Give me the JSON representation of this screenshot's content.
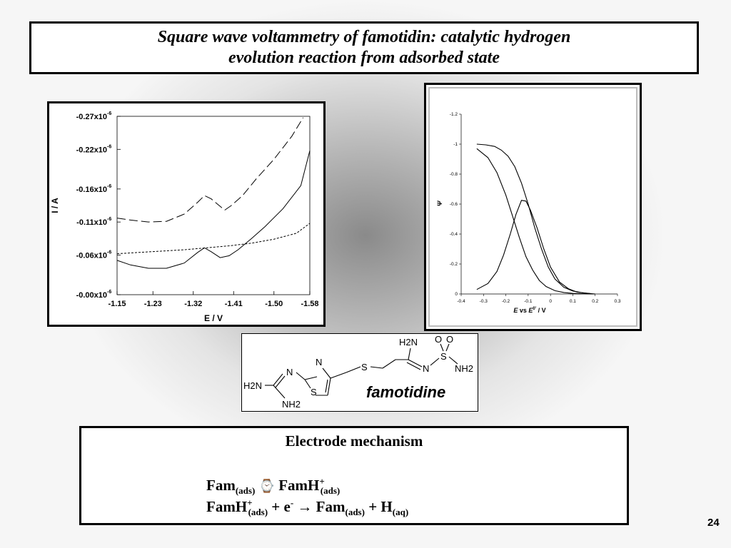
{
  "slide": {
    "title_line1": "Square wave voltammetry of famotidin: catalytic hydrogen",
    "title_line2": "evolution reaction from adsorbed state",
    "page_number": "24"
  },
  "chart_data": [
    {
      "type": "line",
      "xlabel": "E / V",
      "ylabel": "I / A",
      "x_ticks": [
        "-1.15",
        "-1.23",
        "-1.32",
        "-1.41",
        "-1.50",
        "-1.58"
      ],
      "y_ticks_mantissa": [
        "-0.27x10",
        "-0.22x10",
        "-0.16x10",
        "-0.11x10",
        "-0.06x10",
        "-0.00x10"
      ],
      "y_ticks_exponent": "-6",
      "xlim": [
        -1.15,
        -1.58
      ],
      "ylim": [
        0.0,
        -0.27
      ],
      "series": [
        {
          "style": "long-dash",
          "x": [
            -1.15,
            -1.18,
            -1.22,
            -1.26,
            -1.3,
            -1.33,
            -1.345,
            -1.36,
            -1.39,
            -1.405,
            -1.43,
            -1.46,
            -1.5,
            -1.54,
            -1.565
          ],
          "y": [
            -0.116,
            -0.113,
            -0.11,
            -0.111,
            -0.122,
            -0.14,
            -0.15,
            -0.145,
            -0.128,
            -0.135,
            -0.15,
            -0.175,
            -0.205,
            -0.24,
            -0.268
          ]
        },
        {
          "style": "solid",
          "x": [
            -1.15,
            -1.18,
            -1.22,
            -1.26,
            -1.3,
            -1.33,
            -1.345,
            -1.36,
            -1.38,
            -1.4,
            -1.42,
            -1.45,
            -1.48,
            -1.52,
            -1.56,
            -1.58
          ],
          "y": [
            -0.052,
            -0.045,
            -0.04,
            -0.04,
            -0.048,
            -0.064,
            -0.071,
            -0.065,
            -0.056,
            -0.059,
            -0.068,
            -0.085,
            -0.103,
            -0.13,
            -0.165,
            -0.218
          ]
        },
        {
          "style": "short-dash",
          "x": [
            -1.15,
            -1.2,
            -1.25,
            -1.3,
            -1.35,
            -1.4,
            -1.45,
            -1.5,
            -1.55,
            -1.58
          ],
          "y": [
            -0.062,
            -0.064,
            -0.066,
            -0.068,
            -0.071,
            -0.074,
            -0.078,
            -0.084,
            -0.093,
            -0.108
          ]
        }
      ]
    },
    {
      "type": "line",
      "xlabel_italic": "E",
      "xlabel_mid": " vs ",
      "xlabel_italic2": "E",
      "xlabel_sup": "0'",
      "xlabel_tail": " / V",
      "ylabel": "Ψ",
      "x_ticks": [
        "-0.4",
        "-0.3",
        "-0.2",
        "-0.1",
        "0",
        "0.1",
        "0.2",
        "0.3"
      ],
      "y_ticks": [
        "-1.2",
        "-1",
        "-0.8",
        "-0.6",
        "-0.4",
        "-0.2",
        "0"
      ],
      "xlim": [
        -0.4,
        0.3
      ],
      "ylim": [
        0,
        -1.2
      ],
      "series": [
        {
          "x": [
            -0.33,
            -0.28,
            -0.24,
            -0.2,
            -0.17,
            -0.14,
            -0.11,
            -0.08,
            -0.05,
            -0.02,
            0.02,
            0.06,
            0.1,
            0.15,
            0.2
          ],
          "y": [
            -0.97,
            -0.91,
            -0.81,
            -0.66,
            -0.52,
            -0.38,
            -0.25,
            -0.16,
            -0.09,
            -0.05,
            -0.022,
            -0.01,
            -0.004,
            -0.001,
            0
          ]
        },
        {
          "x": [
            -0.33,
            -0.29,
            -0.25,
            -0.22,
            -0.19,
            -0.16,
            -0.13,
            -0.1,
            -0.07,
            -0.04,
            -0.01,
            0.02,
            0.06,
            0.1,
            0.15,
            0.2
          ],
          "y": [
            -1.0,
            -0.995,
            -0.985,
            -0.96,
            -0.92,
            -0.85,
            -0.74,
            -0.6,
            -0.44,
            -0.3,
            -0.18,
            -0.1,
            -0.045,
            -0.02,
            -0.006,
            0
          ]
        },
        {
          "x": [
            -0.33,
            -0.28,
            -0.24,
            -0.21,
            -0.18,
            -0.155,
            -0.13,
            -0.11,
            -0.09,
            -0.06,
            -0.03,
            0.0,
            0.04,
            0.08,
            0.12,
            0.18
          ],
          "y": [
            -0.03,
            -0.07,
            -0.15,
            -0.26,
            -0.4,
            -0.53,
            -0.625,
            -0.62,
            -0.56,
            -0.44,
            -0.3,
            -0.18,
            -0.08,
            -0.035,
            -0.012,
            -0.003
          ]
        }
      ]
    }
  ],
  "structure": {
    "label": "famotidine",
    "atoms": {
      "h2n_left": "H2N",
      "nh2_bottom": "NH2",
      "n_imine": "N",
      "n_ring": "N",
      "s_ring": "S",
      "s_chain": "S",
      "h2n_top": "H2N",
      "n_sulf": "N",
      "s_sulf": "S",
      "o1": "O",
      "o2": "O",
      "nh2_right": "NH2"
    }
  },
  "mechanism": {
    "title": "Electrode mechanism",
    "line1": {
      "a": "Fam",
      "a_sub": "(ads)",
      "arrow": "⌚",
      "b": "FamH",
      "b_sup": "+",
      "b_sub": "(ads)"
    },
    "line2": {
      "a": "FamH",
      "a_sup": "+",
      "a_sub": "(ads)",
      "plus1": " + e",
      "e_sup": "-",
      "arrow": " → ",
      "b": "Fam",
      "b_sub": "(ads)",
      "plus2": " + H",
      "h_sub": "(aq)"
    }
  }
}
